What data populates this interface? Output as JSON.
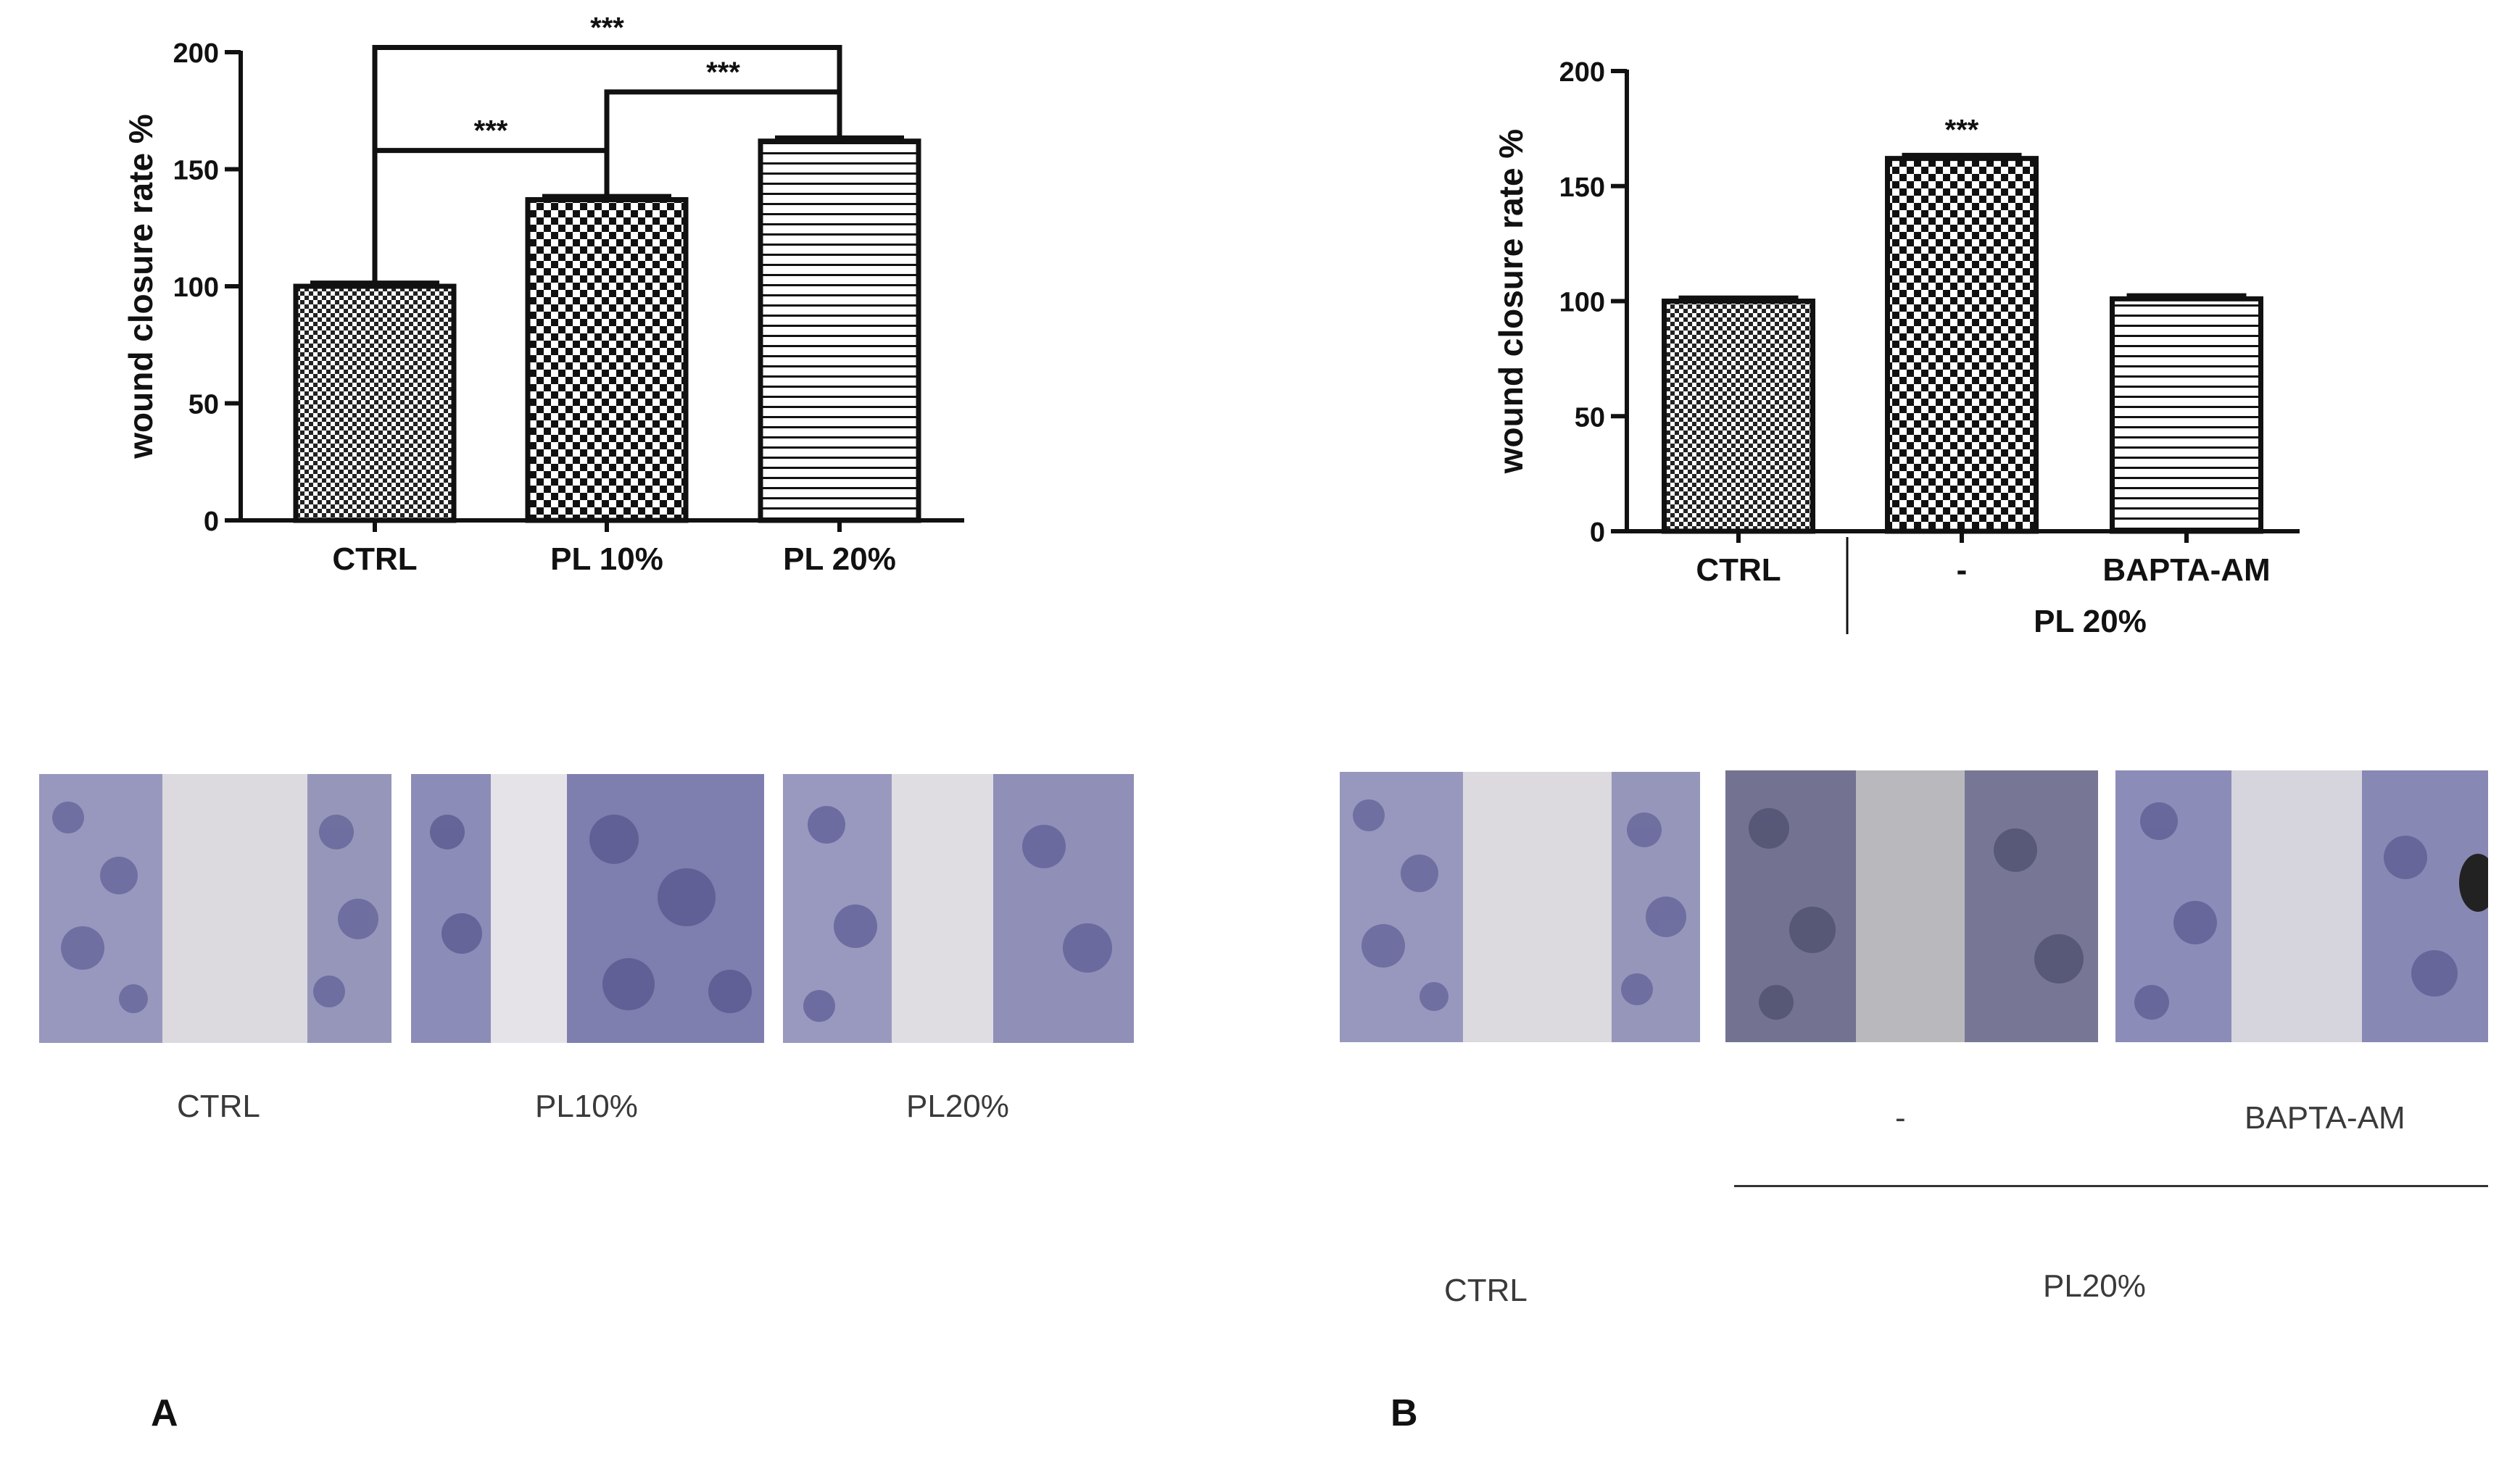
{
  "chart_data": [
    {
      "type": "bar",
      "panel": "A",
      "ylabel": "wound closure rate %",
      "ylim": [
        0,
        200
      ],
      "yticks": [
        "0",
        "50",
        "100",
        "150",
        "200"
      ],
      "categories": [
        "CTRL",
        "PL 10%",
        "PL 20%"
      ],
      "values": [
        100,
        137,
        162
      ],
      "errors": [
        1.5,
        1.5,
        1.5
      ],
      "fills": [
        "fine-checker",
        "coarse-checker",
        "horizontal-lines"
      ],
      "significance": [
        {
          "from": "CTRL",
          "to": "PL 10%",
          "label": "***"
        },
        {
          "from": "PL 10%",
          "to": "PL 20%",
          "label": "***"
        },
        {
          "from": "CTRL",
          "to": "PL 20%",
          "label": "***"
        }
      ]
    },
    {
      "type": "bar",
      "panel": "B",
      "ylabel": "wound closure rate %",
      "ylim": [
        0,
        200
      ],
      "yticks": [
        "0",
        "50",
        "100",
        "150",
        "200"
      ],
      "categories": [
        "CTRL",
        "-",
        "BAPTA-AM"
      ],
      "group_label": "PL 20%",
      "values": [
        100,
        162,
        101
      ],
      "errors": [
        1.5,
        1.5,
        1.5
      ],
      "fills": [
        "fine-checker",
        "coarse-checker",
        "horizontal-lines"
      ],
      "significance": [
        {
          "over": "-",
          "label": "***"
        }
      ]
    }
  ],
  "micrographs": {
    "A": {
      "captions": [
        "CTRL",
        "PL10%",
        "PL20%"
      ]
    },
    "B": {
      "captions": [
        "-",
        "BAPTA-AM"
      ],
      "bottom_captions": [
        "CTRL",
        "PL20%"
      ]
    }
  },
  "panel_labels": [
    "A",
    "B"
  ],
  "colors": {
    "bar_stroke": "#111111",
    "cell_stain": "#6b6ca8",
    "background_field": "#dcd9dc"
  }
}
